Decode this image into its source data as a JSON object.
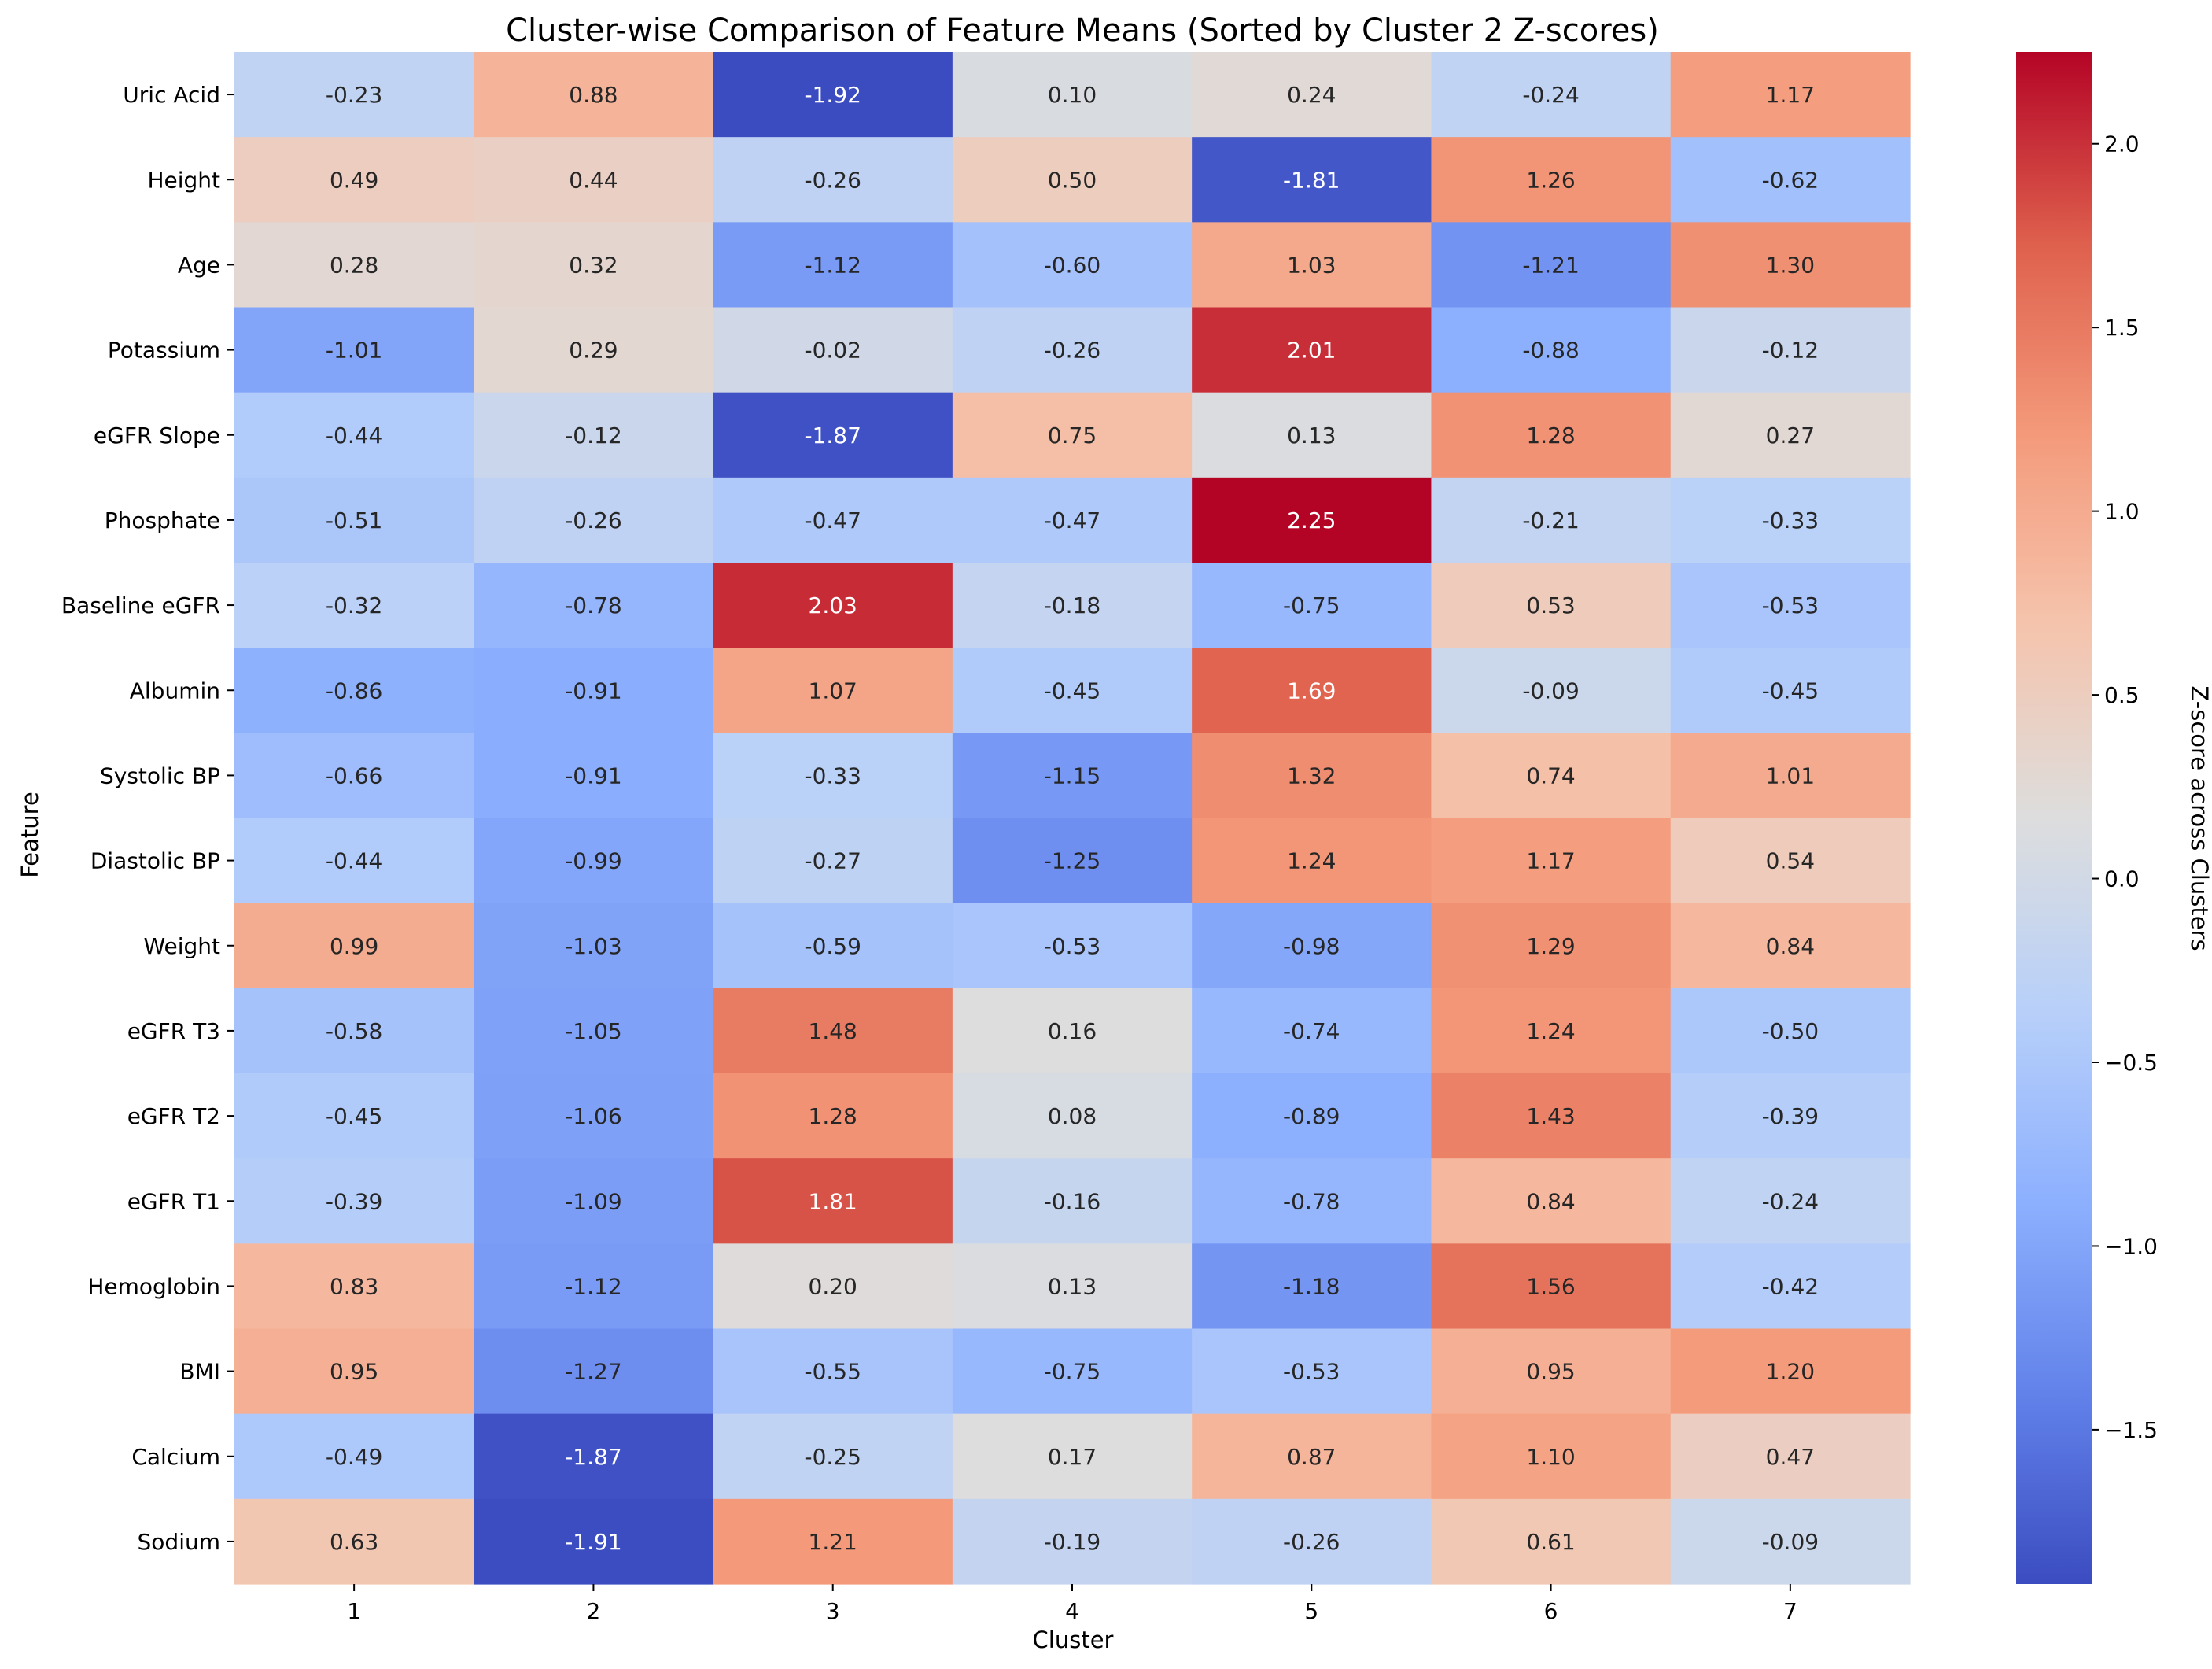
{
  "chart_data": {
    "type": "heatmap",
    "title": "Cluster-wise Comparison of Feature Means (Sorted by Cluster 2 Z-scores)",
    "xlabel": "Cluster",
    "ylabel": "Feature",
    "colorbar_label": "Z-score across Clusters",
    "colormap": "coolwarm",
    "vmin": -1.92,
    "vmax": 2.25,
    "colorbar_ticks": [
      2.0,
      1.5,
      1.0,
      0.5,
      0.0,
      -0.5,
      -1.0,
      -1.5
    ],
    "colorbar_tick_labels": [
      "2.0",
      "1.5",
      "1.0",
      "0.5",
      "0.0",
      "−0.5",
      "−1.0",
      "−1.5"
    ],
    "x_categories": [
      "1",
      "2",
      "3",
      "4",
      "5",
      "6",
      "7"
    ],
    "y_categories": [
      "Uric Acid",
      "Height",
      "Age",
      "Potassium",
      "eGFR Slope",
      "Phosphate",
      "Baseline eGFR",
      "Albumin",
      "Systolic BP",
      "Diastolic BP",
      "Weight",
      "eGFR T3",
      "eGFR T2",
      "eGFR T1",
      "Hemoglobin",
      "BMI",
      "Calcium",
      "Sodium"
    ],
    "values": [
      [
        -0.23,
        0.88,
        -1.92,
        0.1,
        0.24,
        -0.24,
        1.17
      ],
      [
        0.49,
        0.44,
        -0.26,
        0.5,
        -1.81,
        1.26,
        -0.62
      ],
      [
        0.28,
        0.32,
        -1.12,
        -0.6,
        1.03,
        -1.21,
        1.3
      ],
      [
        -1.01,
        0.29,
        -0.02,
        -0.26,
        2.01,
        -0.88,
        -0.12
      ],
      [
        -0.44,
        -0.12,
        -1.87,
        0.75,
        0.13,
        1.28,
        0.27
      ],
      [
        -0.51,
        -0.26,
        -0.47,
        -0.47,
        2.25,
        -0.21,
        -0.33
      ],
      [
        -0.32,
        -0.78,
        2.03,
        -0.18,
        -0.75,
        0.53,
        -0.53
      ],
      [
        -0.86,
        -0.91,
        1.07,
        -0.45,
        1.69,
        -0.09,
        -0.45
      ],
      [
        -0.66,
        -0.91,
        -0.33,
        -1.15,
        1.32,
        0.74,
        1.01
      ],
      [
        -0.44,
        -0.99,
        -0.27,
        -1.25,
        1.24,
        1.17,
        0.54
      ],
      [
        0.99,
        -1.03,
        -0.59,
        -0.53,
        -0.98,
        1.29,
        0.84
      ],
      [
        -0.58,
        -1.05,
        1.48,
        0.16,
        -0.74,
        1.24,
        -0.5
      ],
      [
        -0.45,
        -1.06,
        1.28,
        0.08,
        -0.89,
        1.43,
        -0.39
      ],
      [
        -0.39,
        -1.09,
        1.81,
        -0.16,
        -0.78,
        0.84,
        -0.24
      ],
      [
        0.83,
        -1.12,
        0.2,
        0.13,
        -1.18,
        1.56,
        -0.42
      ],
      [
        0.95,
        -1.27,
        -0.55,
        -0.75,
        -0.53,
        0.95,
        1.2
      ],
      [
        -0.49,
        -1.87,
        -0.25,
        0.17,
        0.87,
        1.1,
        0.47
      ],
      [
        0.63,
        -1.91,
        1.21,
        -0.19,
        -0.26,
        0.61,
        -0.09
      ]
    ],
    "annotation_format": "2 decimals",
    "grid": false,
    "legend": "colorbar-right"
  }
}
